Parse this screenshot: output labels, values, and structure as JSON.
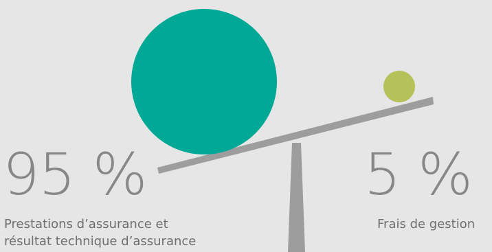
{
  "left_share": {
    "percent_label": "95 %",
    "caption_line1": "Prestations d’assurance et",
    "caption_line2": "résultat technique d’assurance",
    "value": 95
  },
  "right_share": {
    "percent_label": "5 %",
    "caption": "Frais de gestion",
    "value": 5
  },
  "colors": {
    "background": "#e6e6e6",
    "large_circle": "#00a896",
    "small_circle": "#b5c25a",
    "scale": "#9d9d9d",
    "text_large": "#878787",
    "text_caption": "#6f6f6f"
  },
  "icons": {
    "balance": "scale-balance-icon"
  }
}
